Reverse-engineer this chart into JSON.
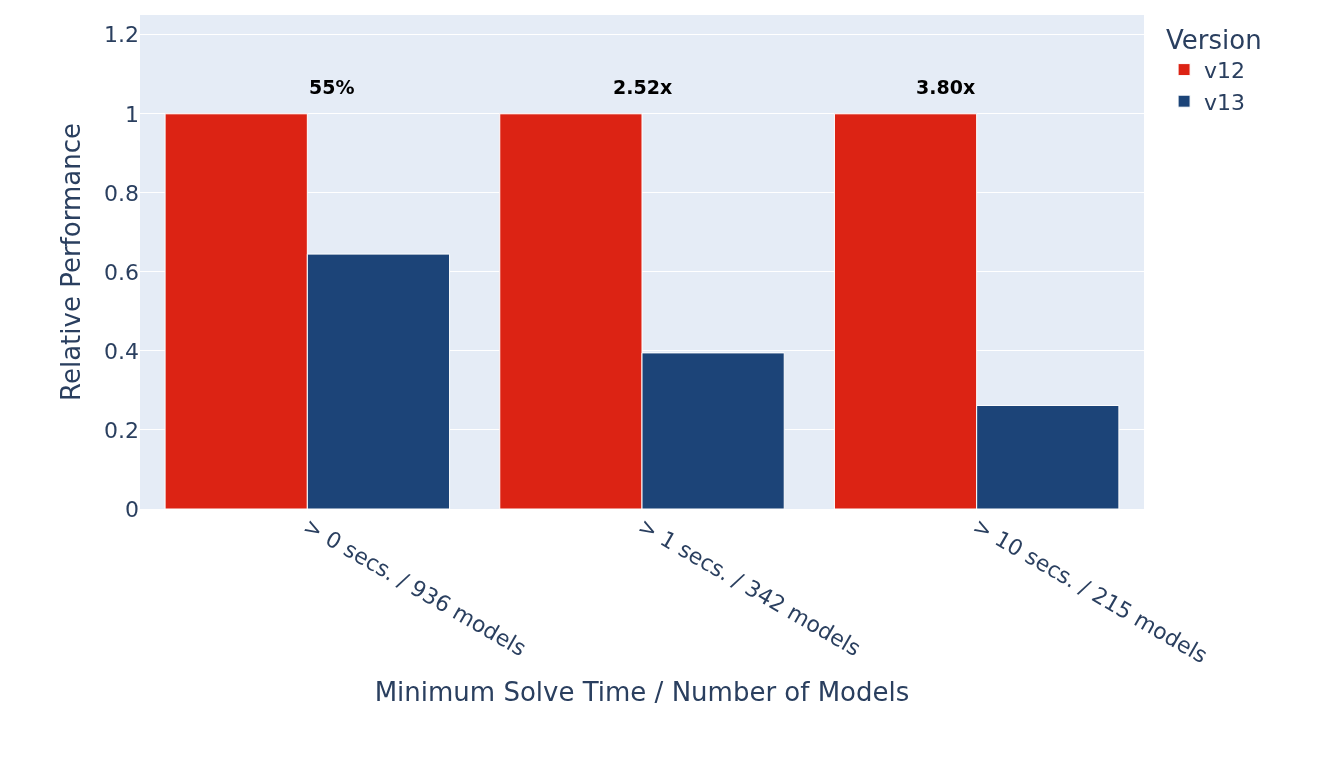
{
  "chart_data": {
    "type": "bar",
    "categories": [
      "> 0 secs. / 936 models",
      "> 1 secs. / 342 models",
      "> 10 secs. / 215 models"
    ],
    "series": [
      {
        "name": "v12",
        "color": "#dc2314",
        "values": [
          1,
          1,
          1
        ]
      },
      {
        "name": "v13",
        "color": "#1c4478",
        "values": [
          0.645,
          0.395,
          0.262
        ]
      }
    ],
    "xlabel": "Minimum Solve Time / Number of Models",
    "ylabel": "Relative Performance",
    "legend_title": "Version",
    "legend": "top right",
    "ylim": [
      0,
      1.25
    ],
    "yticks": [
      0,
      0.2,
      0.4,
      0.6,
      0.8,
      1,
      1.2
    ],
    "grid": "y",
    "annotations": [
      "55%",
      "2.52x",
      "3.80x"
    ]
  }
}
